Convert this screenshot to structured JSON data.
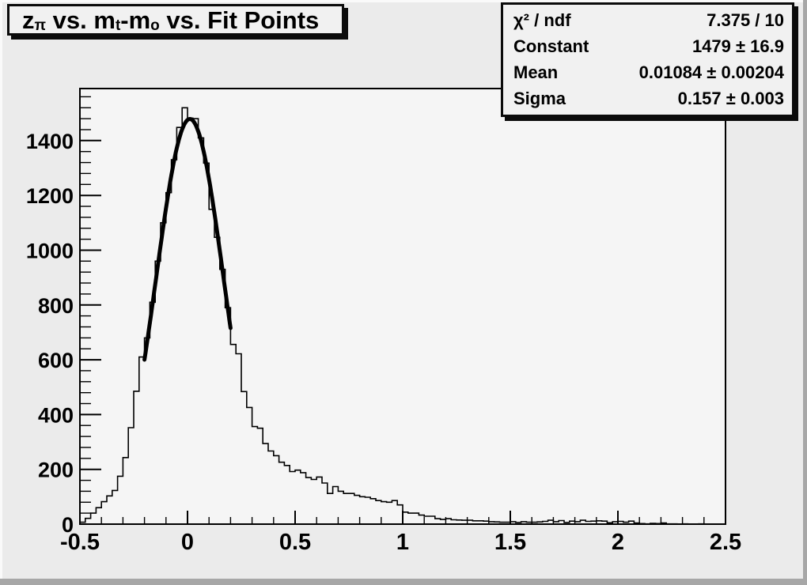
{
  "canvas": {
    "bg": "#ebebeb",
    "frame_bg": "#f5f5f5",
    "pave_bg": "#f1f1f1",
    "line_color": "#000000"
  },
  "title": {
    "parts": [
      "z",
      "π",
      " vs. m",
      "t",
      "-m",
      "o",
      " vs. Fit Points"
    ]
  },
  "stats": {
    "rows": [
      {
        "label": "χ² / ndf",
        "value": "7.375 / 10"
      },
      {
        "label": "Constant",
        "value": "1479 ± 16.9"
      },
      {
        "label": "Mean",
        "value": "0.01084 ± 0.00204"
      },
      {
        "label": "Sigma",
        "value": "0.157 ± 0.003"
      }
    ]
  },
  "chart_data": {
    "type": "bar",
    "subtype": "root-histogram-with-gaussian-fit",
    "title": "z_pi vs. m_t-m_o vs. Fit Points",
    "xlabel": "",
    "ylabel": "",
    "xlim": [
      -0.5,
      2.5
    ],
    "ylim": [
      0,
      1590
    ],
    "grid": false,
    "legend_position": "none",
    "bin_start": -0.5,
    "bin_width": 0.025,
    "values": [
      7,
      21,
      40,
      60,
      82,
      103,
      123,
      175,
      243,
      352,
      485,
      610,
      680,
      810,
      960,
      1100,
      1210,
      1330,
      1448,
      1520,
      1482,
      1480,
      1410,
      1318,
      1149,
      1047,
      930,
      790,
      656,
      622,
      484,
      426,
      356,
      350,
      294,
      267,
      250,
      226,
      214,
      192,
      197,
      188,
      170,
      163,
      172,
      150,
      112,
      137,
      120,
      112,
      112,
      105,
      100,
      98,
      93,
      86,
      82,
      80,
      86,
      70,
      44,
      40,
      40,
      33,
      29,
      29,
      20,
      17,
      20,
      16,
      15,
      14,
      14,
      12,
      12,
      11,
      9,
      8,
      7,
      7,
      9,
      6,
      9,
      7,
      7,
      8,
      10,
      14,
      9,
      13,
      6,
      11,
      9,
      14,
      10,
      11,
      12,
      11,
      5,
      9,
      10,
      7,
      11,
      4,
      2,
      1,
      3,
      2,
      4,
      1,
      1,
      0,
      1,
      0,
      0,
      1,
      0,
      0,
      0,
      0
    ],
    "x_ticks": {
      "major_step": 0.5,
      "minor_step": 0.1,
      "labels": [
        {
          "v": -0.5,
          "t": "-0.5"
        },
        {
          "v": 0,
          "t": "0"
        },
        {
          "v": 0.5,
          "t": "0.5"
        },
        {
          "v": 1,
          "t": "1"
        },
        {
          "v": 1.5,
          "t": "1.5"
        },
        {
          "v": 2,
          "t": "2"
        },
        {
          "v": 2.5,
          "t": "2.5"
        }
      ]
    },
    "y_ticks": {
      "major_step": 200,
      "minor_step": 40,
      "labels": [
        {
          "v": 0,
          "t": "0"
        },
        {
          "v": 200,
          "t": "200"
        },
        {
          "v": 400,
          "t": "400"
        },
        {
          "v": 600,
          "t": "600"
        },
        {
          "v": 800,
          "t": "800"
        },
        {
          "v": 1000,
          "t": "1000"
        },
        {
          "v": 1200,
          "t": "1200"
        },
        {
          "v": 1400,
          "t": "1400"
        }
      ]
    },
    "fit": {
      "type": "gaussian",
      "constant": 1479,
      "mean": 0.01084,
      "sigma": 0.157,
      "chi2": 7.375,
      "ndf": 10,
      "range": [
        -0.2,
        0.2
      ]
    }
  }
}
